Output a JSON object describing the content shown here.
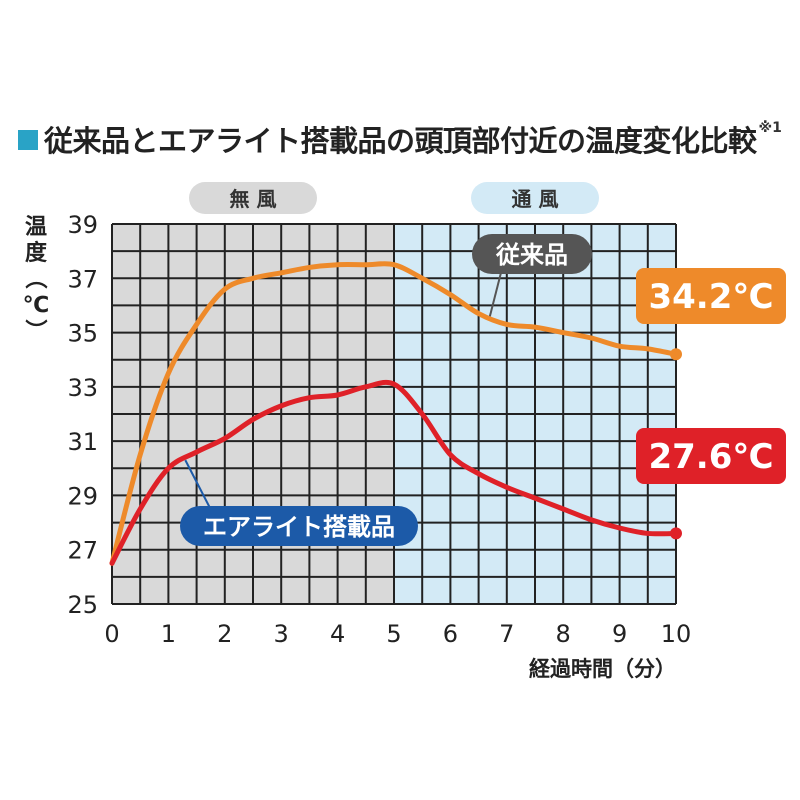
{
  "title": "従来品とエアライト搭載品の頭頂部付近の温度変化比較",
  "title_note": "※1",
  "colors": {
    "accent": "#29a3c6",
    "conventional": "#ee8a2a",
    "airlight": "#df2128",
    "airlight_label_bg": "#1c5aa8",
    "conventional_label_bg": "#555555",
    "no_wind_bg": "#d9d9d9",
    "wind_bg": "#d3eaf6"
  },
  "chart_data": {
    "type": "line",
    "title": "従来品とエアライト搭載品の頭頂部付近の温度変化比較",
    "xlabel": "経過時間（分）",
    "ylabel": "温度（℃）",
    "xlim": [
      0,
      10
    ],
    "ylim": [
      25,
      39
    ],
    "x_ticks": [
      "0",
      "1",
      "2",
      "3",
      "4",
      "5",
      "6",
      "7",
      "8",
      "9",
      "10"
    ],
    "y_ticks": [
      "25",
      "27",
      "29",
      "31",
      "33",
      "35",
      "37",
      "39"
    ],
    "grid": true,
    "regions": [
      {
        "label": "無 風",
        "x_from": 0,
        "x_to": 5
      },
      {
        "label": "通 風",
        "x_from": 5,
        "x_to": 10
      }
    ],
    "series": [
      {
        "name": "従来品",
        "x": [
          0,
          0.5,
          1,
          1.5,
          2,
          2.5,
          3,
          3.5,
          4,
          4.5,
          5,
          5.5,
          6,
          6.5,
          7,
          7.5,
          8,
          8.5,
          9,
          9.5,
          10
        ],
        "values": [
          26.5,
          30.5,
          33.5,
          35.3,
          36.6,
          37.0,
          37.2,
          37.4,
          37.5,
          37.5,
          37.5,
          37.0,
          36.4,
          35.7,
          35.3,
          35.2,
          35.0,
          34.8,
          34.5,
          34.4,
          34.2
        ],
        "end_label": "34.2℃"
      },
      {
        "name": "エアライト搭載品",
        "x": [
          0,
          0.5,
          1,
          1.5,
          2,
          2.5,
          3,
          3.5,
          4,
          4.5,
          5,
          5.5,
          6,
          6.5,
          7,
          7.5,
          8,
          8.5,
          9,
          9.5,
          10
        ],
        "values": [
          26.5,
          28.5,
          30.0,
          30.6,
          31.1,
          31.8,
          32.3,
          32.6,
          32.7,
          33.0,
          33.1,
          32.0,
          30.5,
          29.8,
          29.3,
          28.9,
          28.5,
          28.1,
          27.8,
          27.6,
          27.6
        ],
        "end_label": "27.6℃"
      }
    ]
  }
}
